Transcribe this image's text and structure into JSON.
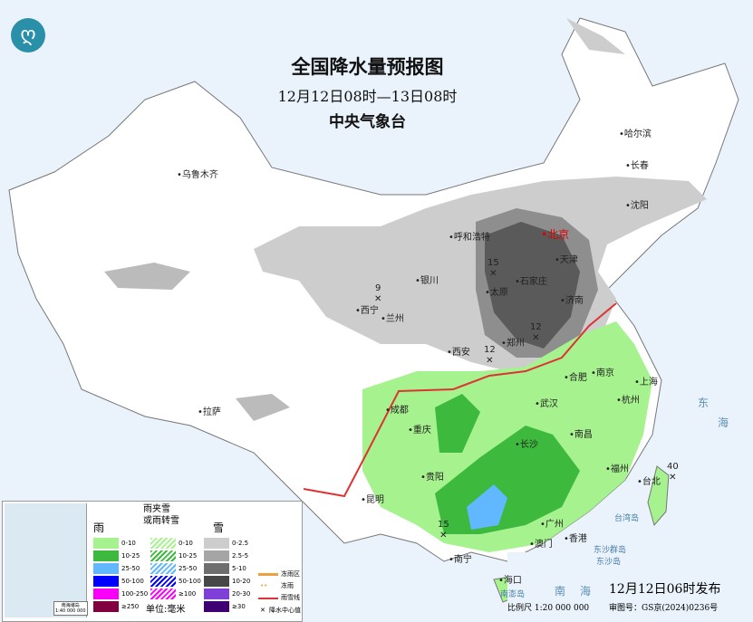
{
  "title": "全国降水量预报图",
  "period": "12月12日08时—13日08时",
  "agency": "中央气象台",
  "cities": [
    {
      "name": "乌鲁木齐",
      "capital": false
    },
    {
      "name": "哈尔滨"
    },
    {
      "name": "长春"
    },
    {
      "name": "沈阳"
    },
    {
      "name": "呼和浩特"
    },
    {
      "name": "北京",
      "capital": true
    },
    {
      "name": "天津"
    },
    {
      "name": "石家庄"
    },
    {
      "name": "太原"
    },
    {
      "name": "银川"
    },
    {
      "name": "西宁"
    },
    {
      "name": "兰州"
    },
    {
      "name": "济南"
    },
    {
      "name": "郑州"
    },
    {
      "name": "西安"
    },
    {
      "name": "合肥"
    },
    {
      "name": "南京"
    },
    {
      "name": "上海"
    },
    {
      "name": "杭州"
    },
    {
      "name": "武汉"
    },
    {
      "name": "成都"
    },
    {
      "name": "重庆"
    },
    {
      "name": "拉萨"
    },
    {
      "name": "长沙"
    },
    {
      "name": "南昌"
    },
    {
      "name": "福州"
    },
    {
      "name": "台北"
    },
    {
      "name": "贵阳"
    },
    {
      "name": "昆明"
    },
    {
      "name": "广州"
    },
    {
      "name": "南宁"
    },
    {
      "name": "澳门"
    },
    {
      "name": "香港"
    },
    {
      "name": "海口"
    }
  ],
  "precip_centers": [
    "9",
    "15",
    "12",
    "12",
    "40",
    "15"
  ],
  "sea_labels": [
    "东",
    "海",
    "南",
    "海",
    "台湾岛",
    "东沙群岛",
    "南澎岛",
    "东沙岛"
  ],
  "legend": {
    "rain_title": "雨",
    "mix_title": "雨夹雪\n或雨转雪",
    "snow_title": "雪",
    "rain": [
      {
        "label": "0-10",
        "color": "#a6f28f"
      },
      {
        "label": "10-25",
        "color": "#3dba3d"
      },
      {
        "label": "25-50",
        "color": "#61b8ff"
      },
      {
        "label": "50-100",
        "color": "#0000fe"
      },
      {
        "label": "100-250",
        "color": "#fa00fa"
      },
      {
        "label": "≥250",
        "color": "#800040"
      }
    ],
    "mix": [
      {
        "label": "0-10",
        "color": "#a6f28f"
      },
      {
        "label": "10-25",
        "color": "#3dba3d"
      },
      {
        "label": "25-50",
        "color": "#61b8ff"
      },
      {
        "label": "50-100",
        "color": "#0000fe"
      },
      {
        "label": "≥100",
        "color": "#fa00fa"
      }
    ],
    "snow": [
      {
        "label": "0-2.5",
        "color": "#cdcdcd"
      },
      {
        "label": "2.5-5",
        "color": "#a5a5a5"
      },
      {
        "label": "5-10",
        "color": "#6e6e6e"
      },
      {
        "label": "10-20",
        "color": "#474747"
      },
      {
        "label": "20-30",
        "color": "#7f3fd8"
      },
      {
        "label": "≥30",
        "color": "#3e0072"
      }
    ],
    "unit": "单位:毫米",
    "freezing_rain_area": "冻雨区",
    "freezing_rain": "冻雨",
    "snow_line": "雨雪线",
    "center_value": "降水中心值",
    "inset_caption": "南海诸岛\n1:40 000 000"
  },
  "published": "12月12日06时发布",
  "scale": "比例尺 1:20 000 000",
  "review_no": "审图号：GS京(2024)0236号"
}
